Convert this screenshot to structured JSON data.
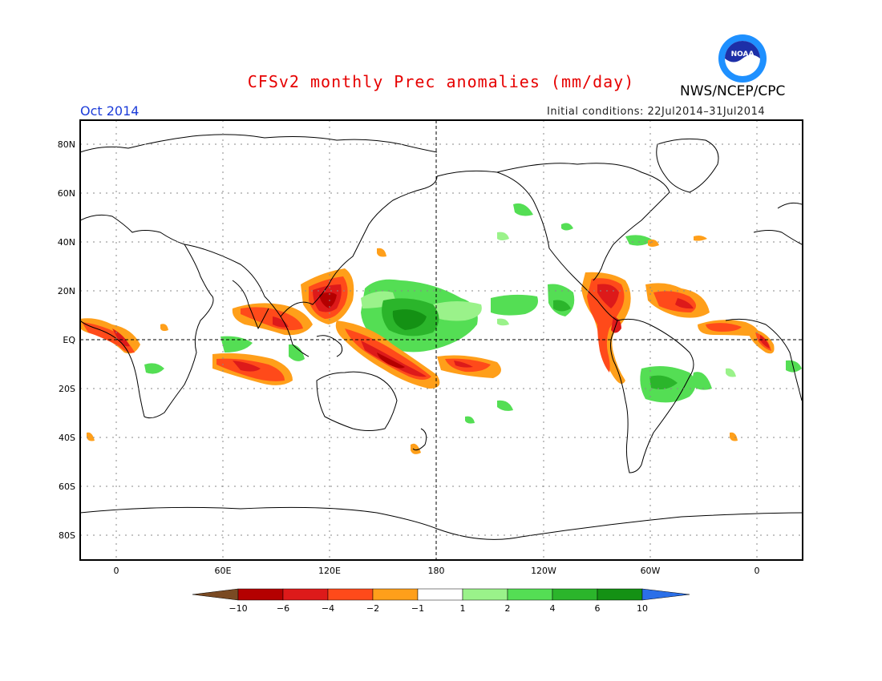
{
  "title": "CFSv2 monthly Prec anomalies (mm/day)",
  "agency": "NWS/NCEP/CPC",
  "logo_text": "NOAA",
  "month_label": "Oct 2014",
  "initial_conditions": "Initial conditions: 22Jul2014–31Jul2014",
  "map": {
    "lat_labels": [
      "80N",
      "60N",
      "40N",
      "20N",
      "EQ",
      "20S",
      "40S",
      "60S",
      "80S"
    ],
    "lon_labels": [
      "0",
      "60E",
      "120E",
      "180",
      "120W",
      "60W",
      "0"
    ]
  },
  "colorbar": {
    "labels": [
      "−10",
      "−6",
      "−4",
      "−2",
      "−1",
      "1",
      "2",
      "4",
      "6",
      "10"
    ],
    "colors": {
      "lt_-10": "#7a4a23",
      "-10_-6": "#b40000",
      "-6_-4": "#dd1a1a",
      "-4_-2": "#ff4a1a",
      "-2_-1": "#ff9f1a",
      "-1_1": "#ffffff",
      "1_2": "#9af28a",
      "2_4": "#54de54",
      "4_6": "#2bb52b",
      "6_10": "#149114",
      "gt_10": "#2b6fe8"
    }
  }
}
